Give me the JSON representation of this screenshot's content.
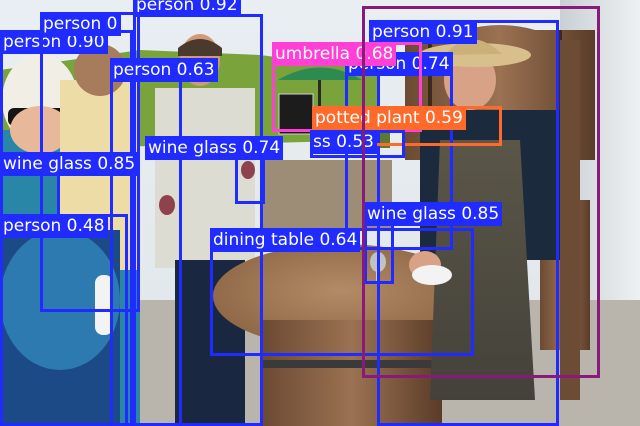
{
  "photo": {
    "subject": "People tasting wine around a barrel table; a man in an apron and straw hat pours wine"
  },
  "colors": {
    "person": "#1f2bff",
    "umbrella": "#ff3fd5",
    "potted_plant": "#ff6a2a",
    "chair": "#8a1a7a",
    "label_text": "#ffffff"
  },
  "detections": [
    {
      "label": "person 0.92",
      "cls": "person"
    },
    {
      "label": "person 0.91",
      "cls": "person"
    },
    {
      "label": "person 0.90",
      "cls": "person"
    },
    {
      "label": "person 0",
      "cls": "person"
    },
    {
      "label": "person 0.63",
      "cls": "person"
    },
    {
      "label": "person 0.74",
      "cls": "person"
    },
    {
      "label": "umbrella 0.68",
      "cls": "umbrella"
    },
    {
      "label": "potted plant 0.59",
      "cls": "potted_plant"
    },
    {
      "label": "ss 0.53",
      "cls": "person"
    },
    {
      "label": "wine glass 0.74",
      "cls": "person"
    },
    {
      "label": "wine glass 0.85",
      "cls": "person"
    },
    {
      "label": "wine glass 0.85",
      "cls": "person"
    },
    {
      "label": "person 0.48",
      "cls": "person"
    },
    {
      "label": "dining table 0.64",
      "cls": "person"
    },
    {
      "label": "",
      "cls": "chair"
    }
  ]
}
